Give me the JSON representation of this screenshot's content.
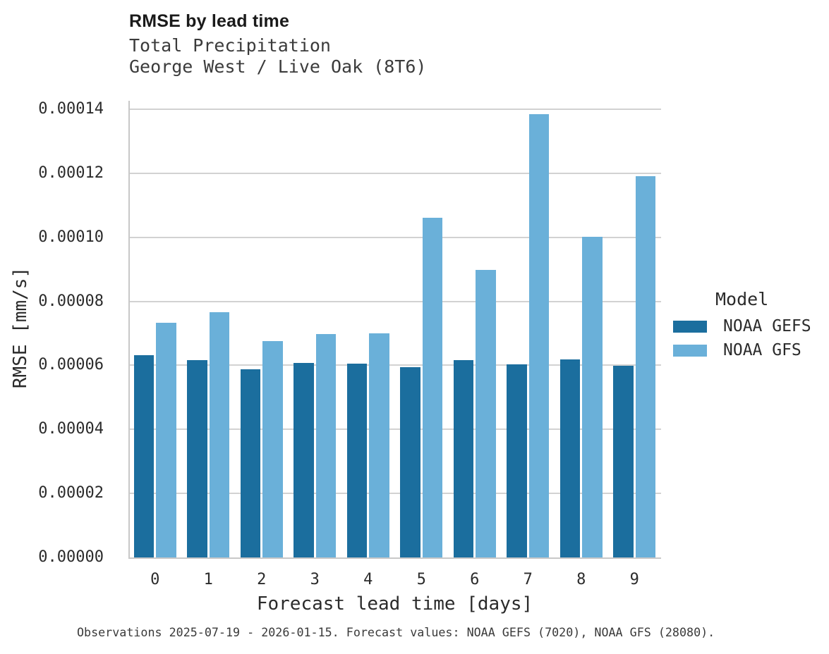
{
  "header": {
    "title": "RMSE by lead time",
    "subtitle_line1": "Total Precipitation",
    "subtitle_line2": "George West / Live Oak (8T6)"
  },
  "chart_data": {
    "type": "bar",
    "title": "RMSE by lead time",
    "subtitle": [
      "Total Precipitation",
      "George West / Live Oak (8T6)"
    ],
    "xlabel": "Forecast lead time [days]",
    "ylabel": "RMSE [mm/s]",
    "categories": [
      "0",
      "1",
      "2",
      "3",
      "4",
      "5",
      "6",
      "7",
      "8",
      "9"
    ],
    "series": [
      {
        "name": "NOAA GEFS",
        "color": "#1b6e9e",
        "values": [
          6.31e-05,
          6.16e-05,
          5.88e-05,
          6.07e-05,
          6.05e-05,
          5.95e-05,
          6.16e-05,
          6.03e-05,
          6.18e-05,
          5.98e-05
        ]
      },
      {
        "name": "NOAA GFS",
        "color": "#6ab0d9",
        "values": [
          7.34e-05,
          7.66e-05,
          6.76e-05,
          6.97e-05,
          7e-05,
          0.0001061,
          8.98e-05,
          0.0001385,
          0.0001002,
          0.0001192
        ]
      }
    ],
    "ylim": [
      0,
      0.00014
    ],
    "yticks": [
      "0.00000",
      "0.00002",
      "0.00004",
      "0.00006",
      "0.00008",
      "0.00010",
      "0.00012",
      "0.00014"
    ],
    "grid": true,
    "legend_title": "Model",
    "legend_position": "right"
  },
  "caption": "Observations 2025-07-19 - 2026-01-15. Forecast values: NOAA GEFS (7020), NOAA GFS (28080)."
}
